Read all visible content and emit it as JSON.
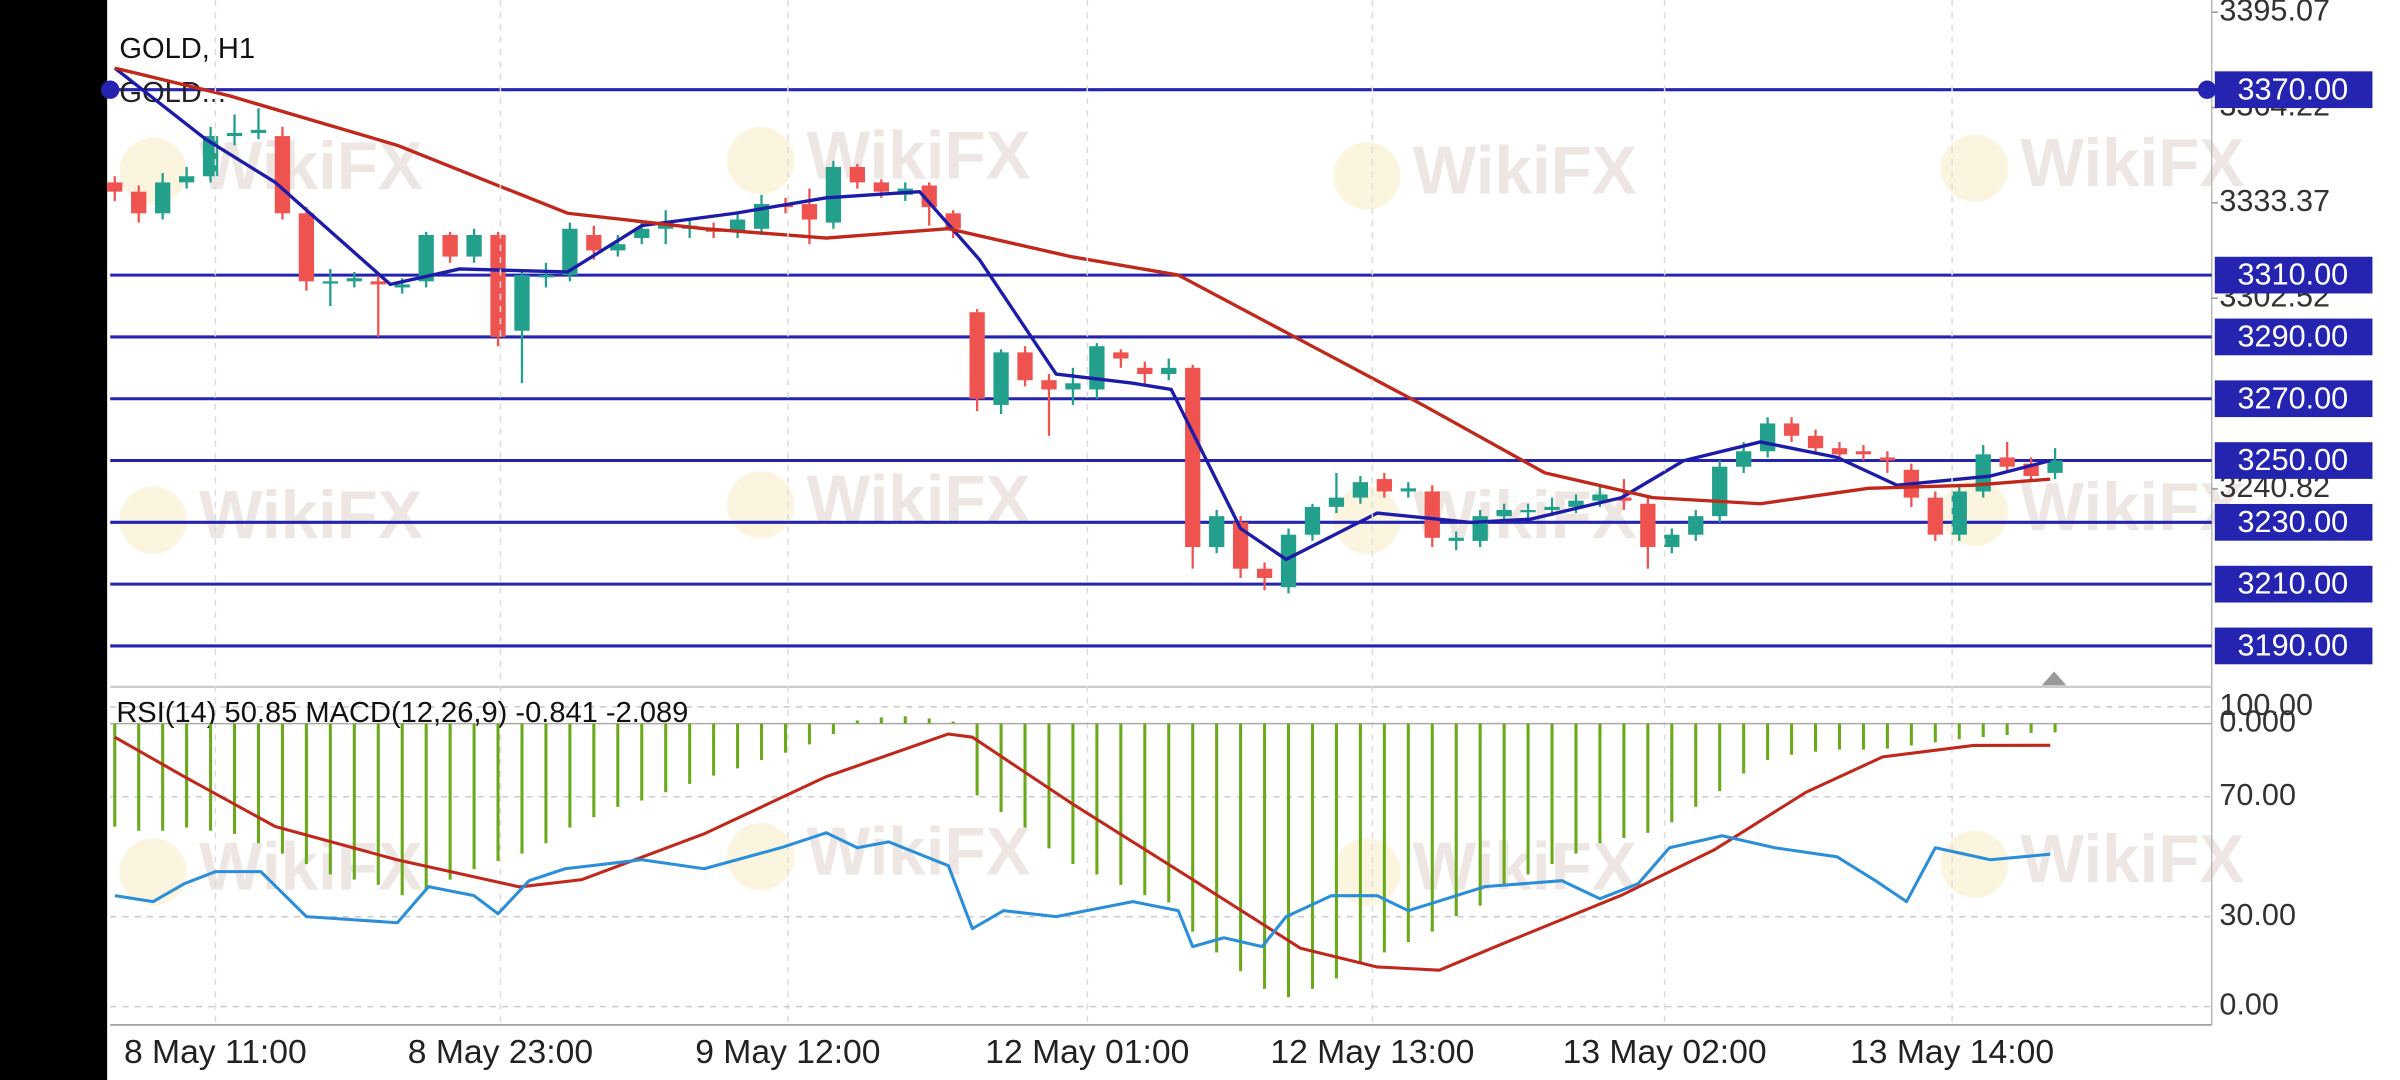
{
  "watermark": "WikiFX",
  "chart_data": [
    {
      "type": "candlestick",
      "title": "GOLD, H1",
      "xlim": [
        -0.19,
        87.54
      ],
      "ylim": [
        3177.75,
        3399.03
      ],
      "yticks": [
        3395.07,
        3364.22,
        3333.37,
        3302.52,
        3240.82
      ],
      "up_color": "#22a08c",
      "down_color": "#ef5350",
      "open": [
        3340,
        3337,
        3330,
        3340,
        3342,
        3355,
        3356,
        3355,
        3330,
        3308,
        3308,
        3308,
        3306,
        3308,
        3323,
        3316,
        3323,
        3292,
        3310,
        3310,
        3323,
        3318,
        3322,
        3325,
        3325,
        3325,
        3324,
        3325,
        3333,
        3333,
        3327,
        3345,
        3340,
        3336,
        3339,
        3330,
        3298,
        3268,
        3285,
        3276,
        3273,
        3273,
        3285,
        3280,
        3278,
        3280,
        3222,
        3230,
        3215,
        3209,
        3226,
        3235,
        3238,
        3244,
        3240,
        3240,
        3224,
        3224,
        3232,
        3234,
        3234,
        3235,
        3237,
        3238,
        3236,
        3222,
        3226,
        3232,
        3248,
        3253,
        3262,
        3258,
        3254,
        3253,
        3251,
        3247,
        3238,
        3226,
        3240,
        3251,
        3249,
        3246
      ],
      "high": [
        3342,
        3339,
        3343,
        3345,
        3358,
        3362,
        3364,
        3358,
        3332,
        3312,
        3311,
        3310,
        3309,
        3324,
        3324,
        3325,
        3324,
        3312,
        3314,
        3327,
        3326,
        3323,
        3327,
        3331,
        3328,
        3327,
        3330,
        3336,
        3335,
        3338,
        3347,
        3346,
        3341,
        3340,
        3340,
        3331,
        3299,
        3286,
        3287,
        3278,
        3280,
        3288,
        3286,
        3282,
        3283,
        3281,
        3234,
        3232,
        3217,
        3228,
        3236,
        3246,
        3245,
        3246,
        3243,
        3242,
        3227,
        3234,
        3236,
        3236,
        3238,
        3239,
        3242,
        3244,
        3238,
        3228,
        3234,
        3250,
        3256,
        3264,
        3264,
        3260,
        3256,
        3255,
        3253,
        3249,
        3240,
        3242,
        3255,
        3256,
        3251,
        3254
      ],
      "low": [
        3334,
        3327,
        3328,
        3338,
        3340,
        3352,
        3354,
        3328,
        3305,
        3300,
        3306,
        3290,
        3304,
        3306,
        3314,
        3314,
        3287,
        3275,
        3306,
        3308,
        3315,
        3316,
        3320,
        3320,
        3322,
        3322,
        3322,
        3323,
        3330,
        3320,
        3325,
        3338,
        3335,
        3334,
        3326,
        3322,
        3266,
        3265,
        3274,
        3258,
        3268,
        3270,
        3280,
        3274,
        3276,
        3215,
        3220,
        3212,
        3208,
        3207,
        3224,
        3233,
        3236,
        3238,
        3238,
        3222,
        3221,
        3222,
        3230,
        3231,
        3232,
        3233,
        3235,
        3234,
        3215,
        3220,
        3224,
        3230,
        3246,
        3251,
        3256,
        3252,
        3250,
        3250,
        3246,
        3235,
        3224,
        3224,
        3238,
        3246,
        3243,
        3244
      ],
      "close": [
        3337,
        3330,
        3340,
        3342,
        3355,
        3356,
        3357,
        3330,
        3308,
        3308,
        3309,
        3307,
        3307,
        3323,
        3316,
        3323,
        3290,
        3310,
        3310,
        3325,
        3318,
        3320,
        3325,
        3327,
        3326,
        3324,
        3328,
        3333,
        3332,
        3328,
        3345,
        3340,
        3337,
        3338,
        3332,
        3325,
        3270,
        3285,
        3276,
        3273,
        3275,
        3287,
        3283,
        3278,
        3280,
        3222,
        3232,
        3215,
        3212,
        3226,
        3235,
        3238,
        3243,
        3240,
        3241,
        3225,
        3225,
        3232,
        3234,
        3234,
        3235,
        3237,
        3239,
        3237,
        3222,
        3226,
        3232,
        3248,
        3253,
        3262,
        3258,
        3254,
        3252,
        3252,
        3250,
        3238,
        3226,
        3240,
        3252,
        3248,
        3245,
        3250
      ],
      "series": [
        {
          "color": "#1c1ca8",
          "x": [
            0,
            3.8,
            6.7,
            11.5,
            14.4,
            18.9,
            22,
            25.9,
            29.7,
            33.6,
            36.1,
            39.3,
            42.5,
            44.1,
            47,
            48.9,
            52.7,
            56.6,
            59.1,
            62.9,
            65.5,
            68.7,
            71.9,
            74.4,
            78.3,
            80.8
          ],
          "values": [
            3377,
            3354,
            3340,
            3307,
            3312,
            3311,
            3326,
            3330,
            3335,
            3337,
            3315,
            3278,
            3275,
            3273,
            3228,
            3218,
            3233,
            3230,
            3231,
            3238,
            3250,
            3256,
            3251,
            3242,
            3245,
            3250
          ]
        },
        {
          "color": "#c0281c",
          "x": [
            0,
            4.8,
            11.8,
            18.9,
            24.6,
            29.7,
            34.8,
            39.9,
            44.4,
            49.5,
            54.6,
            59.7,
            64.2,
            68.7,
            73.2,
            77.6,
            80.8
          ],
          "values": [
            3377,
            3368,
            3352,
            3330,
            3325,
            3322,
            3325,
            3316,
            3310,
            3289,
            3268,
            3246,
            3238,
            3236,
            3241,
            3242,
            3244
          ]
        }
      ],
      "level_color": "#2424b0",
      "level_name": "GOLD...",
      "levels": [
        {
          "value": 3370,
          "label": "3370.00"
        },
        {
          "value": 3310,
          "label": "3310.00"
        },
        {
          "value": 3290,
          "label": "3290.00"
        },
        {
          "value": 3270,
          "label": "3270.00"
        },
        {
          "value": 3250,
          "label": "3250.00"
        },
        {
          "value": 3230,
          "label": "3230.00"
        },
        {
          "value": 3210,
          "label": "3210.00"
        },
        {
          "value": 3190,
          "label": "3190.00"
        }
      ]
    },
    {
      "type": "indicator",
      "title": "RSI(14) 50.85 MACD(12,26,9) -0.841 -2.089",
      "xlim": [
        -0.19,
        87.54
      ],
      "xticks": [
        {
          "value": 4.2,
          "label": "8 May 11:00"
        },
        {
          "value": 16.1,
          "label": "8 May 23:00"
        },
        {
          "value": 28.1,
          "label": "9 May 12:00"
        },
        {
          "value": 40.6,
          "label": "12 May 01:00"
        },
        {
          "value": 52.5,
          "label": "12 May 13:00"
        },
        {
          "value": 64.7,
          "label": "13 May 02:00"
        },
        {
          "value": 76.7,
          "label": "13 May 14:00"
        }
      ],
      "ylim": [
        -6.1,
        103.6
      ],
      "yticks": [
        {
          "value": 100,
          "label": "100.00"
        },
        {
          "value": 70,
          "label": "70.00"
        },
        {
          "value": 30,
          "label": "30.00"
        },
        {
          "value": 0,
          "label": "0.00"
        }
      ],
      "y2lim": [
        -28.97,
        2.65
      ],
      "y2ticks": [
        {
          "value": 0,
          "label": "0.000"
        }
      ],
      "grid": true,
      "series": [
        {
          "type": "bar",
          "axis": "y2",
          "color": "#6aaa1a",
          "values": [
            -9.9,
            -10.3,
            -10.3,
            -10,
            -10.3,
            -10.6,
            -11.5,
            -12.5,
            -13.5,
            -14.5,
            -15,
            -15.5,
            -16.5,
            -16,
            -15,
            -14,
            -13.2,
            -12.5,
            -11.5,
            -10,
            -9,
            -8,
            -7.4,
            -6.6,
            -5.8,
            -5,
            -4.3,
            -3.5,
            -2.8,
            -2,
            -1,
            0.3,
            0.6,
            0.7,
            0.5,
            0.2,
            -6.9,
            -8.5,
            -10,
            -12,
            -13.5,
            -14.5,
            -15.5,
            -16.5,
            -17.2,
            -20,
            -22,
            -23.8,
            -25.5,
            -26.3,
            -25.5,
            -24.5,
            -23,
            -22,
            -21,
            -20,
            -18.5,
            -17.5,
            -15.5,
            -14.5,
            -13.5,
            -12.5,
            -11.5,
            -11,
            -10.5,
            -9.5,
            -8,
            -6.5,
            -4.8,
            -3.5,
            -3,
            -2.7,
            -2.5,
            -2.5,
            -2.4,
            -2.1,
            -1.8,
            -1.5,
            -1.3,
            -1.1,
            -0.9,
            -0.841
          ]
        },
        {
          "type": "line",
          "axis": "y2",
          "color": "#c0281c",
          "x": [
            0,
            2.9,
            6.7,
            11.8,
            16.9,
            19.5,
            24.6,
            29.7,
            34.8,
            35.8,
            39.9,
            45,
            49.5,
            52.7,
            55.3,
            57.8,
            62.9,
            66.8,
            70.6,
            73.8,
            77.6,
            80.8
          ],
          "values": [
            -1.3,
            -5.1,
            -9.9,
            -13.1,
            -15.7,
            -15,
            -10.6,
            -5.1,
            -1,
            -1.3,
            -7.6,
            -15,
            -21.6,
            -23.4,
            -23.7,
            -21.3,
            -16.5,
            -12.1,
            -6.6,
            -3.2,
            -2.1,
            -2.089
          ]
        },
        {
          "type": "line",
          "axis": "y",
          "color": "#2a8fd8",
          "x": [
            0,
            1.6,
            2.9,
            4.2,
            6.1,
            8,
            11.8,
            13.1,
            15,
            16,
            17.3,
            18.8,
            22,
            24.6,
            27.8,
            29.7,
            31,
            32.3,
            34.8,
            35.8,
            37.1,
            39.3,
            42.5,
            44.4,
            45,
            46.3,
            47.9,
            48.9,
            50.8,
            52.7,
            54,
            57.2,
            60.4,
            62,
            63.6,
            64.9,
            67.1,
            69.3,
            71.9,
            73.5,
            74.8,
            76,
            78.3,
            80.8
          ],
          "values": [
            37,
            35,
            41,
            45,
            45,
            30,
            28,
            40,
            37,
            31,
            42,
            46,
            49,
            46,
            53,
            58,
            53,
            55,
            47,
            26,
            32,
            30,
            35,
            32,
            20,
            23,
            20,
            30,
            37,
            37,
            32,
            40,
            42,
            36,
            41,
            53,
            57,
            53,
            50,
            42,
            35,
            53,
            49,
            50.85
          ]
        }
      ]
    }
  ]
}
